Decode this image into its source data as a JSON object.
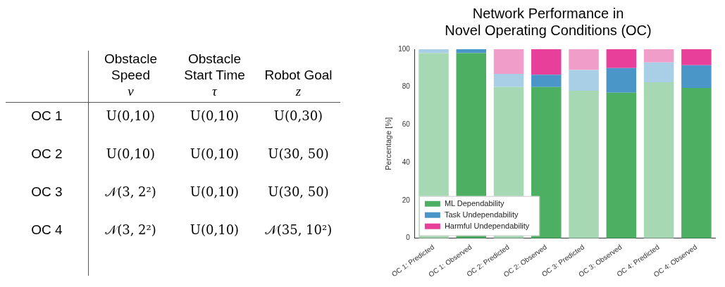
{
  "chart_data": [
    {
      "type": "other",
      "categories": [
        "Obstacle\nSpeed\nv",
        "Obstacle\nStart Time\nτ",
        "\nRobot Goal\nz"
      ],
      "y_categories": [
        "OC 1",
        "OC 2",
        "OC 3",
        "OC 4"
      ],
      "cell_labels": [
        [
          "U(0,10)",
          "U(0,10)",
          "U(0,30)"
        ],
        [
          "U(0,10)",
          "U(0,10)",
          "U(30, 50)"
        ],
        [
          "𝒩(3, 2²)",
          "U(0,10)",
          "U(30, 50)"
        ],
        [
          "𝒩(3, 2²)",
          "U(0,10)",
          "𝒩(35, 10²)"
        ]
      ]
    },
    {
      "type": "bar",
      "title": "Network Performance in\nNovel Operating Conditions (OC)",
      "ylabel": "Percentage [%]",
      "categories": [
        "OC 1: Predicted",
        "OC 1: Observed",
        "OC 2: Predicted",
        "OC 2: Observed",
        "OC 3: Predicted",
        "OC 3: Observed",
        "OC 4: Predicted",
        "OC 4: Observed"
      ],
      "stacked": true,
      "ylim": [
        0,
        100
      ],
      "yticks": [
        0,
        20,
        40,
        60,
        80,
        100
      ],
      "grid": false,
      "legend": "bottom left",
      "series": [
        {
          "name": "ML Dependability",
          "color": "#4daf62",
          "colors": [
            "#a6d9b3",
            "#4daf62",
            "#a6d9b3",
            "#4daf62",
            "#a6d9b3",
            "#4daf62",
            "#a6d9b3",
            "#4daf62"
          ],
          "values": [
            98,
            98,
            80,
            80,
            78,
            77,
            82.5,
            79.5
          ]
        },
        {
          "name": "Task Undependability",
          "color": "#4a96c9",
          "colors": [
            "#a9cfe6",
            "#4a96c9",
            "#a9cfe6",
            "#4a96c9",
            "#a9cfe6",
            "#4a96c9",
            "#a9cfe6",
            "#4a96c9"
          ],
          "values": [
            2,
            2,
            7,
            6.5,
            11,
            13,
            10.5,
            12
          ]
        },
        {
          "name": "Harmful Undependability",
          "color": "#e8409a",
          "colors": [
            "#f19dc9",
            "#e8409a",
            "#f19dc9",
            "#e8409a",
            "#f19dc9",
            "#e8409a",
            "#f19dc9",
            "#e8409a"
          ],
          "values": [
            0,
            0,
            13,
            13.5,
            11,
            10,
            7,
            8.5
          ]
        }
      ]
    }
  ]
}
